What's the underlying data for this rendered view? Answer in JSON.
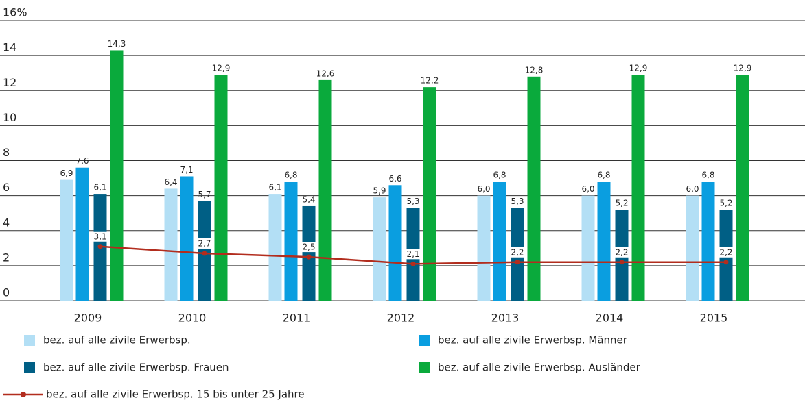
{
  "chart_data": {
    "type": "bar",
    "categories": [
      "2009",
      "2010",
      "2011",
      "2012",
      "2013",
      "2014",
      "2015"
    ],
    "series": [
      {
        "name": "bez. auf alle zivile Erwerbsp.",
        "color": "#b3dff5",
        "values": [
          6.9,
          6.4,
          6.1,
          5.9,
          6.0,
          6.0,
          6.0
        ],
        "value_labels": [
          "6,9",
          "6,4",
          "6,1",
          "5,9",
          "6,0",
          "6,0",
          "6,0"
        ]
      },
      {
        "name": "bez. auf alle zivile Erwerbsp. Männer",
        "color": "#0a9ee0",
        "values": [
          7.6,
          7.1,
          6.8,
          6.6,
          6.8,
          6.8,
          6.8
        ],
        "value_labels": [
          "7,6",
          "7,1",
          "6,8",
          "6,6",
          "6,8",
          "6,8",
          "6,8"
        ]
      },
      {
        "name": "bez. auf alle zivile Erwerbsp. Frauen",
        "color": "#005f85",
        "values": [
          6.1,
          5.7,
          5.4,
          5.3,
          5.3,
          5.2,
          5.2
        ],
        "value_labels": [
          "6,1",
          "5,7",
          "5,4",
          "5,3",
          "5,3",
          "5,2",
          "5,2"
        ]
      },
      {
        "name": "bez. auf alle zivile Erwerbsp. Ausländer",
        "color": "#0aaa3c",
        "values": [
          14.3,
          12.9,
          12.6,
          12.2,
          12.8,
          12.9,
          12.9
        ],
        "value_labels": [
          "14,3",
          "12,9",
          "12,6",
          "12,2",
          "12,8",
          "12,9",
          "12,9"
        ]
      },
      {
        "name": "bez. auf alle zivile Erwerbsp. 15 bis unter 25 Jahre",
        "type": "line",
        "color": "#b22d1e",
        "values": [
          3.1,
          2.7,
          2.5,
          2.1,
          2.2,
          2.2,
          2.2
        ],
        "value_labels": [
          "3,1",
          "2,7",
          "2,5",
          "2,1",
          "2,2",
          "2,2",
          "2,2"
        ]
      }
    ],
    "ylim": [
      0,
      16
    ],
    "yticks": [
      0,
      2,
      4,
      6,
      8,
      10,
      12,
      14,
      {
        "value": 16,
        "label": "16%"
      }
    ],
    "grid": true
  }
}
